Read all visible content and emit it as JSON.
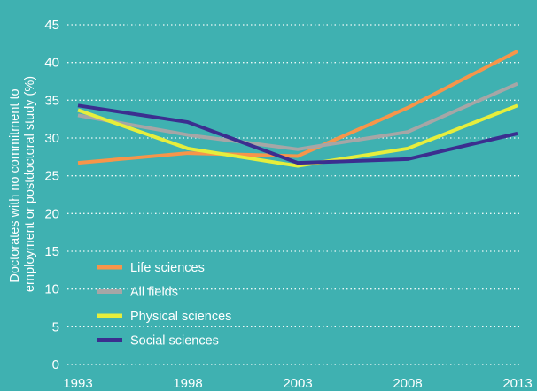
{
  "chart_data": {
    "type": "line",
    "title": "",
    "xlabel": "",
    "ylabel_lines": [
      "Doctorates with no commitment to",
      "employment or postdoctoral study (%)"
    ],
    "x": [
      1993,
      1998,
      2003,
      2008,
      2013
    ],
    "ylim": [
      0,
      45
    ],
    "yticks": [
      0,
      5,
      10,
      15,
      20,
      25,
      30,
      35,
      40,
      45
    ],
    "grid": "horizontal dotted",
    "legend_position": "bottom-left",
    "series": [
      {
        "name": "Life sciences",
        "color": "#f7954a",
        "values": [
          26.7,
          28.0,
          27.6,
          34.0,
          41.5
        ]
      },
      {
        "name": "All fields",
        "color": "#a6a6a6",
        "values": [
          33.0,
          30.4,
          28.5,
          30.8,
          37.2
        ]
      },
      {
        "name": "Physical sciences",
        "color": "#e6ee3c",
        "values": [
          33.7,
          28.6,
          26.3,
          28.6,
          34.3
        ]
      },
      {
        "name": "Social sciences",
        "color": "#3b2e8f",
        "values": [
          34.3,
          32.1,
          26.7,
          27.2,
          30.6
        ]
      }
    ],
    "colors": {
      "background": "#3fb1b1",
      "grid": "#ffffff",
      "text": "#ffffff"
    }
  }
}
